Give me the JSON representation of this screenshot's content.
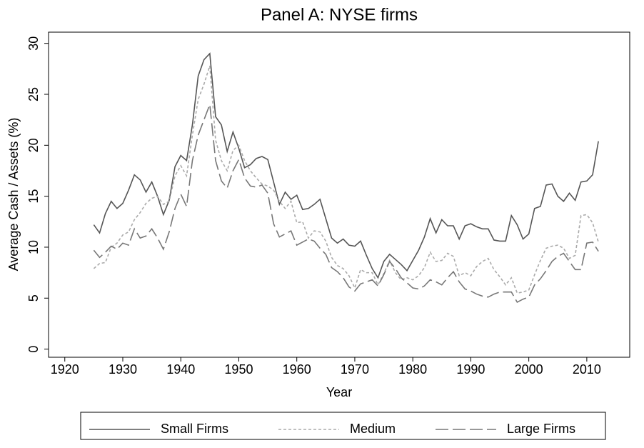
{
  "chart_data": {
    "type": "line",
    "title": "Panel A: NYSE firms",
    "x_label": "Year",
    "y_label": "Average Cash / Assets (%)",
    "x": [
      1925,
      1926,
      1927,
      1928,
      1929,
      1930,
      1931,
      1932,
      1933,
      1934,
      1935,
      1936,
      1937,
      1938,
      1939,
      1940,
      1941,
      1942,
      1943,
      1944,
      1945,
      1946,
      1947,
      1948,
      1949,
      1950,
      1951,
      1952,
      1953,
      1954,
      1955,
      1956,
      1957,
      1958,
      1959,
      1960,
      1961,
      1962,
      1963,
      1964,
      1965,
      1966,
      1967,
      1968,
      1969,
      1970,
      1971,
      1972,
      1973,
      1974,
      1975,
      1976,
      1977,
      1978,
      1979,
      1980,
      1981,
      1982,
      1983,
      1984,
      1985,
      1986,
      1987,
      1988,
      1989,
      1990,
      1991,
      1992,
      1993,
      1994,
      1995,
      1996,
      1997,
      1998,
      1999,
      2000,
      2001,
      2002,
      2003,
      2004,
      2005,
      2006,
      2007,
      2008,
      2009,
      2010,
      2011,
      2012
    ],
    "series": [
      {
        "name": "Small Firms",
        "color": "#555555",
        "values": [
          12.2,
          11.4,
          13.3,
          14.5,
          13.8,
          14.3,
          15.6,
          17.1,
          16.6,
          15.4,
          16.4,
          15.0,
          13.2,
          14.6,
          17.9,
          19.0,
          18.5,
          22.0,
          26.8,
          28.4,
          29.0,
          22.8,
          22.0,
          19.4,
          21.3,
          19.7,
          17.8,
          18.1,
          18.7,
          18.9,
          18.6,
          16.4,
          14.2,
          15.4,
          14.7,
          15.1,
          13.7,
          13.8,
          14.2,
          14.7,
          12.8,
          10.9,
          10.4,
          10.8,
          10.2,
          10.1,
          10.6,
          9.2,
          7.9,
          7.0,
          8.6,
          9.3,
          8.8,
          8.3,
          7.7,
          8.7,
          9.7,
          11.0,
          12.8,
          11.4,
          12.7,
          12.1,
          12.1,
          10.8,
          12.1,
          12.3,
          12.0,
          11.8,
          11.8,
          10.7,
          10.6,
          10.6,
          13.1,
          12.2,
          10.8,
          11.3,
          13.8,
          14.0,
          16.1,
          16.2,
          15.0,
          14.5,
          15.3,
          14.6,
          16.4,
          16.5,
          17.1,
          20.4
        ]
      },
      {
        "name": "Medium",
        "color": "#aaaaaa",
        "dash": "4 3",
        "values": [
          7.9,
          8.4,
          8.5,
          10.0,
          10.4,
          11.2,
          11.5,
          12.7,
          13.4,
          14.3,
          14.8,
          15.0,
          14.2,
          14.5,
          17.0,
          18.0,
          17.0,
          21.0,
          24.5,
          26.0,
          27.8,
          20.5,
          18.5,
          17.5,
          19.5,
          20.0,
          18.5,
          17.5,
          16.8,
          16.2,
          16.0,
          15.6,
          14.5,
          13.8,
          14.5,
          12.4,
          12.5,
          10.9,
          11.6,
          11.5,
          10.6,
          9.0,
          8.2,
          7.9,
          7.2,
          6.0,
          7.8,
          7.5,
          7.5,
          6.3,
          7.4,
          8.7,
          7.5,
          6.8,
          7.0,
          6.8,
          7.2,
          8.0,
          9.5,
          8.6,
          8.7,
          9.4,
          9.1,
          7.2,
          7.5,
          7.2,
          8.1,
          8.6,
          8.9,
          7.8,
          7.1,
          6.3,
          7.0,
          5.5,
          5.6,
          5.8,
          7.3,
          8.7,
          9.9,
          10.1,
          10.2,
          9.9,
          8.9,
          9.2,
          13.1,
          13.2,
          12.4,
          10.5
        ]
      },
      {
        "name": "Large Firms",
        "color": "#777777",
        "dash": "18 6",
        "values": [
          9.7,
          9.0,
          9.5,
          10.1,
          9.8,
          10.4,
          10.2,
          11.8,
          10.9,
          11.1,
          11.8,
          10.9,
          9.8,
          11.5,
          13.8,
          15.2,
          14.0,
          18.5,
          21.0,
          22.5,
          24.0,
          18.5,
          16.5,
          15.8,
          17.5,
          18.6,
          16.8,
          16.0,
          15.9,
          16.1,
          15.3,
          12.3,
          11.0,
          11.3,
          11.6,
          10.2,
          10.5,
          10.8,
          10.6,
          9.9,
          9.3,
          8.0,
          7.6,
          7.0,
          6.1,
          5.7,
          6.4,
          6.6,
          6.8,
          6.2,
          7.3,
          8.6,
          7.9,
          7.0,
          6.5,
          6.0,
          5.9,
          6.2,
          6.8,
          6.6,
          6.3,
          7.0,
          7.6,
          6.6,
          5.9,
          5.7,
          5.4,
          5.2,
          5.1,
          5.4,
          5.6,
          5.6,
          5.6,
          4.6,
          4.9,
          5.1,
          6.3,
          6.9,
          7.7,
          8.6,
          9.1,
          9.4,
          8.6,
          7.8,
          7.8,
          10.4,
          10.5,
          9.6
        ]
      }
    ],
    "xlim": [
      1917.2,
      2017.4
    ],
    "xticks": [
      1920,
      1930,
      1940,
      1950,
      1960,
      1970,
      1980,
      1990,
      2000,
      2010
    ],
    "ylim": [
      -0.8,
      31.1
    ],
    "yticks": [
      0,
      5,
      10,
      15,
      20,
      25,
      30
    ],
    "legend": "bottom"
  }
}
